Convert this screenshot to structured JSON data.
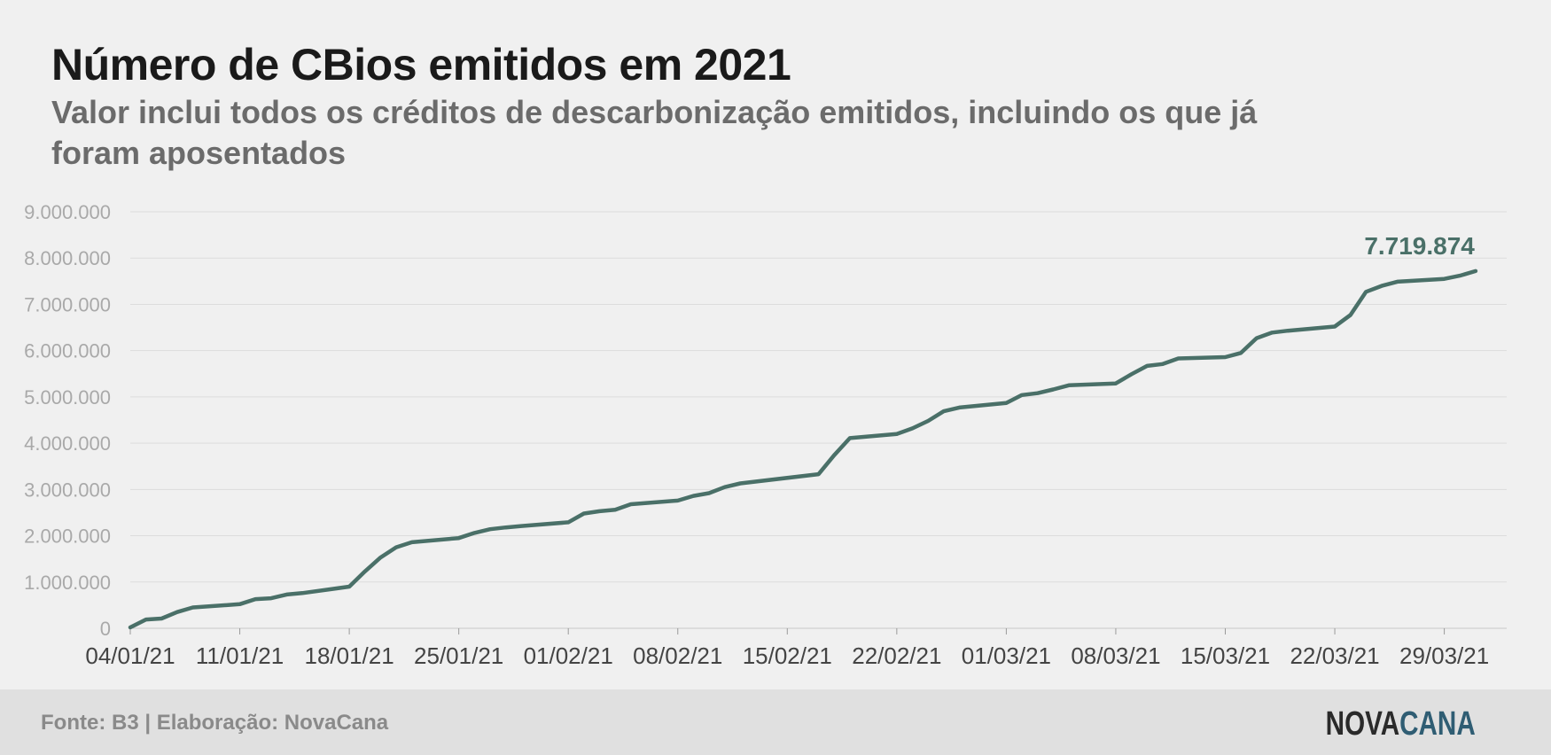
{
  "title": "Número de CBios emitidos em 2021",
  "subtitle": "Valor inclui todos os créditos de descarbonização emitidos, incluindo os que já foram aposentados",
  "footer": {
    "source": "Fonte: B3 | Elaboração: NovaCana",
    "logo_part1": "NOVA",
    "logo_part2": "CANA"
  },
  "colors": {
    "line": "#4a7068",
    "grid": "#dcdcdc",
    "logo_accent": "#2f5d73"
  },
  "chart_data": {
    "type": "line",
    "x_tick_labels": [
      "04/01/21",
      "11/01/21",
      "18/01/21",
      "25/01/21",
      "01/02/21",
      "08/02/21",
      "15/02/21",
      "22/02/21",
      "01/03/21",
      "08/03/21",
      "15/03/21",
      "22/03/21",
      "29/03/21"
    ],
    "y_tick_labels": [
      "0",
      "1.000.000",
      "2.000.000",
      "3.000.000",
      "4.000.000",
      "5.000.000",
      "6.000.000",
      "7.000.000",
      "8.000.000",
      "9.000.000"
    ],
    "ylim": [
      0,
      9000000
    ],
    "xlim": [
      "04/01/21",
      "31/03/21"
    ],
    "grid": "horizontal",
    "end_label": "7.719.874",
    "series": [
      {
        "x": [
          "04/01/21",
          "05/01/21",
          "06/01/21",
          "07/01/21",
          "08/01/21",
          "11/01/21",
          "12/01/21",
          "13/01/21",
          "14/01/21",
          "15/01/21",
          "18/01/21",
          "19/01/21",
          "20/01/21",
          "21/01/21",
          "22/01/21",
          "25/01/21",
          "26/01/21",
          "27/01/21",
          "28/01/21",
          "29/01/21",
          "01/02/21",
          "02/02/21",
          "03/02/21",
          "04/02/21",
          "05/02/21",
          "08/02/21",
          "09/02/21",
          "10/02/21",
          "11/02/21",
          "12/02/21",
          "17/02/21",
          "18/02/21",
          "19/02/21",
          "22/02/21",
          "23/02/21",
          "24/02/21",
          "25/02/21",
          "26/02/21",
          "01/03/21",
          "02/03/21",
          "03/03/21",
          "04/03/21",
          "05/03/21",
          "08/03/21",
          "09/03/21",
          "10/03/21",
          "11/03/21",
          "12/03/21",
          "15/03/21",
          "16/03/21",
          "17/03/21",
          "18/03/21",
          "19/03/21",
          "22/03/21",
          "23/03/21",
          "24/03/21",
          "25/03/21",
          "26/03/21",
          "29/03/21",
          "30/03/21",
          "31/03/21"
        ],
        "y": [
          20000,
          190000,
          210000,
          350000,
          450000,
          520000,
          630000,
          650000,
          730000,
          760000,
          900000,
          1230000,
          1530000,
          1750000,
          1860000,
          1950000,
          2060000,
          2140000,
          2180000,
          2210000,
          2290000,
          2480000,
          2530000,
          2560000,
          2680000,
          2760000,
          2860000,
          2920000,
          3050000,
          3130000,
          3330000,
          3740000,
          4110000,
          4200000,
          4320000,
          4480000,
          4690000,
          4770000,
          4870000,
          5040000,
          5080000,
          5160000,
          5250000,
          5290000,
          5490000,
          5670000,
          5710000,
          5830000,
          5860000,
          5950000,
          6270000,
          6390000,
          6430000,
          6520000,
          6770000,
          7270000,
          7400000,
          7490000,
          7550000,
          7620000,
          7719874
        ]
      }
    ]
  }
}
